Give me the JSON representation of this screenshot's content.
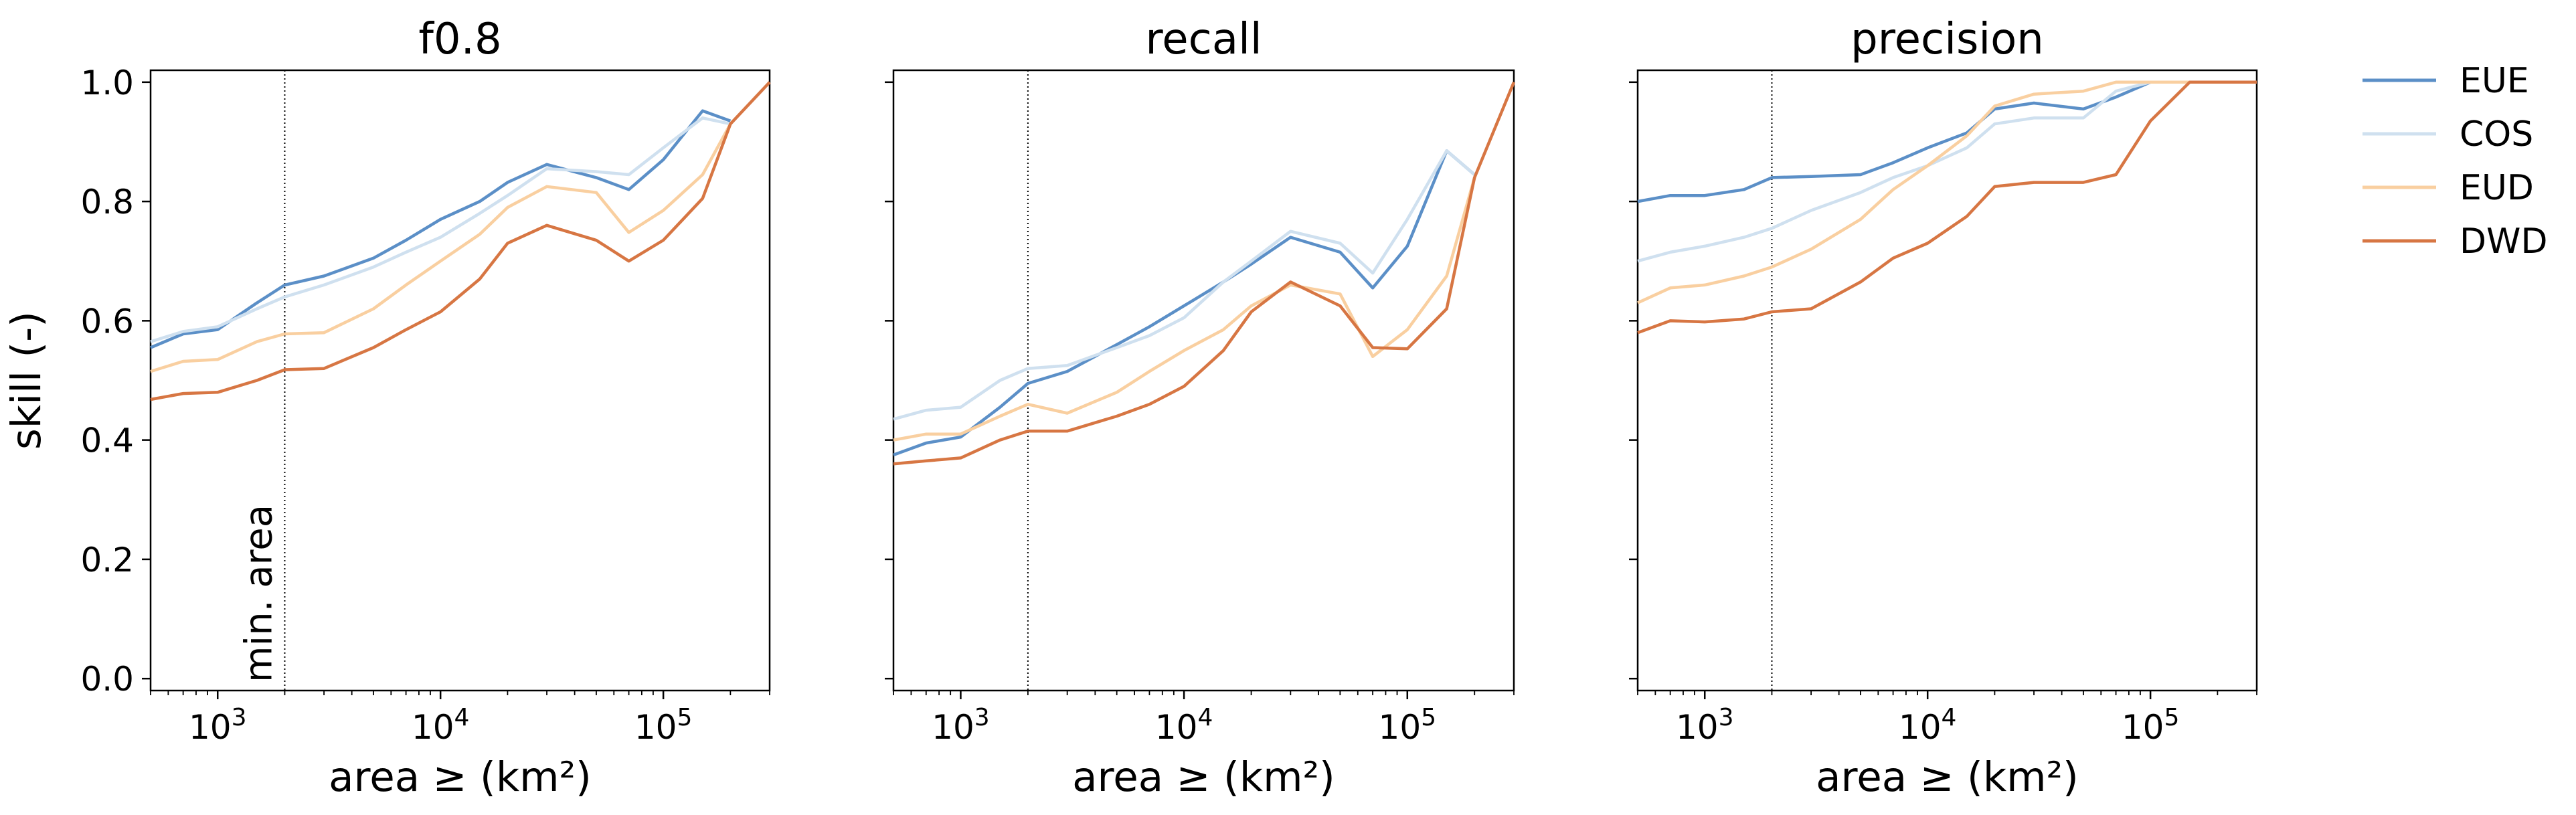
{
  "chart_data": [
    {
      "type": "line",
      "title": "f0.8",
      "xlabel": "area ≥ (km²)",
      "ylabel": "skill (-)",
      "xscale": "log",
      "xlim": [
        500,
        300000
      ],
      "ylim": [
        -0.02,
        1.02
      ],
      "annotation": {
        "text": "min. area",
        "x": 2000
      },
      "series": [
        {
          "name": "EUE",
          "color": "#5b8fc7",
          "x": [
            500,
            700,
            1000,
            1500,
            2000,
            3000,
            5000,
            7000,
            10000,
            15000,
            20000,
            30000,
            50000,
            70000,
            100000,
            150000,
            200000
          ],
          "y": [
            0.555,
            0.578,
            0.585,
            0.63,
            0.66,
            0.675,
            0.705,
            0.735,
            0.77,
            0.8,
            0.832,
            0.862,
            0.84,
            0.82,
            0.87,
            0.952,
            0.935
          ]
        },
        {
          "name": "COS",
          "color": "#cfe0ef",
          "x": [
            500,
            700,
            1000,
            1500,
            2000,
            3000,
            5000,
            7000,
            10000,
            15000,
            20000,
            30000,
            50000,
            70000,
            100000,
            150000,
            200000
          ],
          "y": [
            0.565,
            0.582,
            0.59,
            0.62,
            0.64,
            0.66,
            0.69,
            0.715,
            0.74,
            0.78,
            0.81,
            0.855,
            0.85,
            0.845,
            0.89,
            0.94,
            0.93
          ]
        },
        {
          "name": "EUD",
          "color": "#f9cfa0",
          "x": [
            500,
            700,
            1000,
            1500,
            2000,
            3000,
            5000,
            7000,
            10000,
            15000,
            20000,
            30000,
            50000,
            70000,
            100000,
            150000,
            200000
          ],
          "y": [
            0.515,
            0.532,
            0.535,
            0.565,
            0.578,
            0.58,
            0.62,
            0.66,
            0.7,
            0.745,
            0.79,
            0.825,
            0.815,
            0.748,
            0.785,
            0.845,
            0.93
          ]
        },
        {
          "name": "DWD",
          "color": "#d77643",
          "x": [
            500,
            700,
            1000,
            1500,
            2000,
            3000,
            5000,
            7000,
            10000,
            15000,
            20000,
            30000,
            50000,
            70000,
            100000,
            150000,
            200000,
            300000
          ],
          "y": [
            0.468,
            0.478,
            0.48,
            0.5,
            0.518,
            0.52,
            0.555,
            0.585,
            0.615,
            0.67,
            0.73,
            0.76,
            0.735,
            0.7,
            0.735,
            0.805,
            0.93,
            1.0
          ]
        }
      ]
    },
    {
      "type": "line",
      "title": "recall",
      "xlabel": "area ≥ (km²)",
      "xscale": "log",
      "xlim": [
        500,
        300000
      ],
      "ylim": [
        -0.02,
        1.02
      ],
      "series": [
        {
          "name": "EUE",
          "color": "#5b8fc7",
          "x": [
            500,
            700,
            1000,
            1500,
            2000,
            3000,
            5000,
            7000,
            10000,
            15000,
            20000,
            30000,
            50000,
            70000,
            100000,
            150000,
            200000
          ],
          "y": [
            0.375,
            0.395,
            0.405,
            0.455,
            0.495,
            0.515,
            0.56,
            0.59,
            0.625,
            0.665,
            0.695,
            0.74,
            0.715,
            0.655,
            0.725,
            0.885,
            0.845
          ]
        },
        {
          "name": "COS",
          "color": "#cfe0ef",
          "x": [
            500,
            700,
            1000,
            1500,
            2000,
            3000,
            5000,
            7000,
            10000,
            15000,
            20000,
            30000,
            50000,
            70000,
            100000,
            150000,
            200000
          ],
          "y": [
            0.435,
            0.45,
            0.455,
            0.5,
            0.52,
            0.525,
            0.555,
            0.575,
            0.605,
            0.665,
            0.7,
            0.75,
            0.73,
            0.68,
            0.77,
            0.885,
            0.845
          ]
        },
        {
          "name": "EUD",
          "color": "#f9cfa0",
          "x": [
            500,
            700,
            1000,
            1500,
            2000,
            3000,
            5000,
            7000,
            10000,
            15000,
            20000,
            30000,
            50000,
            70000,
            100000,
            150000,
            200000
          ],
          "y": [
            0.4,
            0.41,
            0.41,
            0.44,
            0.46,
            0.445,
            0.48,
            0.515,
            0.55,
            0.585,
            0.625,
            0.66,
            0.645,
            0.54,
            0.585,
            0.675,
            0.84
          ]
        },
        {
          "name": "DWD",
          "color": "#d77643",
          "x": [
            500,
            700,
            1000,
            1500,
            2000,
            3000,
            5000,
            7000,
            10000,
            15000,
            20000,
            30000,
            50000,
            70000,
            100000,
            150000,
            200000,
            300000
          ],
          "y": [
            0.36,
            0.365,
            0.37,
            0.4,
            0.415,
            0.415,
            0.44,
            0.46,
            0.49,
            0.55,
            0.615,
            0.665,
            0.625,
            0.555,
            0.553,
            0.62,
            0.84,
            1.0
          ]
        }
      ]
    },
    {
      "type": "line",
      "title": "precision",
      "xlabel": "area ≥ (km²)",
      "xscale": "log",
      "xlim": [
        500,
        300000
      ],
      "ylim": [
        -0.02,
        1.02
      ],
      "series": [
        {
          "name": "EUE",
          "color": "#5b8fc7",
          "x": [
            500,
            700,
            1000,
            1500,
            2000,
            3000,
            5000,
            7000,
            10000,
            15000,
            20000,
            30000,
            50000,
            70000,
            100000,
            150000,
            200000,
            300000
          ],
          "y": [
            0.8,
            0.81,
            0.81,
            0.82,
            0.84,
            0.842,
            0.845,
            0.865,
            0.89,
            0.915,
            0.955,
            0.965,
            0.955,
            0.975,
            1.0,
            1.0,
            1.0,
            1.0
          ]
        },
        {
          "name": "COS",
          "color": "#cfe0ef",
          "x": [
            500,
            700,
            1000,
            1500,
            2000,
            3000,
            5000,
            7000,
            10000,
            15000,
            20000,
            30000,
            50000,
            70000,
            100000,
            150000,
            200000,
            300000
          ],
          "y": [
            0.7,
            0.715,
            0.725,
            0.74,
            0.755,
            0.785,
            0.815,
            0.84,
            0.86,
            0.89,
            0.93,
            0.94,
            0.94,
            0.985,
            1.0,
            1.0,
            1.0,
            1.0
          ]
        },
        {
          "name": "EUD",
          "color": "#f9cfa0",
          "x": [
            500,
            700,
            1000,
            1500,
            2000,
            3000,
            5000,
            7000,
            10000,
            15000,
            20000,
            30000,
            50000,
            70000,
            100000,
            150000,
            200000,
            300000
          ],
          "y": [
            0.63,
            0.655,
            0.66,
            0.675,
            0.69,
            0.72,
            0.77,
            0.82,
            0.86,
            0.91,
            0.96,
            0.98,
            0.985,
            1.0,
            1.0,
            1.0,
            1.0,
            1.0
          ]
        },
        {
          "name": "DWD",
          "color": "#d77643",
          "x": [
            500,
            700,
            1000,
            1500,
            2000,
            3000,
            5000,
            7000,
            10000,
            15000,
            20000,
            30000,
            50000,
            70000,
            100000,
            150000,
            200000,
            300000
          ],
          "y": [
            0.58,
            0.6,
            0.598,
            0.603,
            0.615,
            0.62,
            0.665,
            0.705,
            0.73,
            0.775,
            0.825,
            0.832,
            0.832,
            0.845,
            0.935,
            1.0,
            1.0,
            1.0
          ]
        }
      ]
    }
  ],
  "legend": {
    "placement": "right",
    "items": [
      {
        "label": "EUE",
        "color": "#5b8fc7"
      },
      {
        "label": "COS",
        "color": "#cfe0ef"
      },
      {
        "label": "EUD",
        "color": "#f9cfa0"
      },
      {
        "label": "DWD",
        "color": "#d77643"
      }
    ]
  }
}
